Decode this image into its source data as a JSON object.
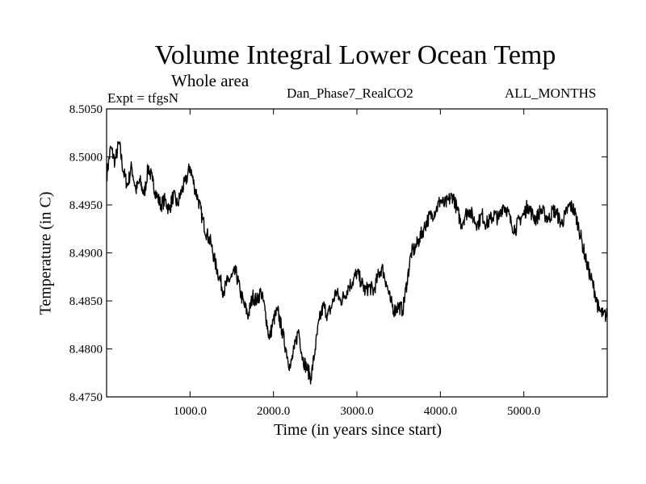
{
  "chart_data": {
    "type": "line",
    "title": "Volume Integral Lower Ocean Temp",
    "subtitle": "Whole area",
    "expt_label": "Expt = tfgsN",
    "run_label": "Dan_Phase7_RealCO2",
    "months_label": "ALL_MONTHS",
    "xlabel": "Time (in years since start)",
    "ylabel": "Temperature (in C)",
    "xlim": [
      0,
      6000
    ],
    "ylim": [
      8.475,
      8.505
    ],
    "xticks": [
      {
        "value": 1000,
        "label": "1000.0"
      },
      {
        "value": 2000,
        "label": "2000.0"
      },
      {
        "value": 3000,
        "label": "3000.0"
      },
      {
        "value": 4000,
        "label": "4000.0"
      },
      {
        "value": 5000,
        "label": "5000.0"
      }
    ],
    "yticks": [
      {
        "value": 8.475,
        "label": "8.4750"
      },
      {
        "value": 8.48,
        "label": "8.4800"
      },
      {
        "value": 8.485,
        "label": "8.4850"
      },
      {
        "value": 8.49,
        "label": "8.4900"
      },
      {
        "value": 8.495,
        "label": "8.4950"
      },
      {
        "value": 8.5,
        "label": "8.5000"
      },
      {
        "value": 8.505,
        "label": "8.5050"
      }
    ],
    "grid": false,
    "series": [
      {
        "name": "Volume Integral Lower Ocean Temp",
        "x": [
          0,
          50,
          100,
          150,
          200,
          250,
          300,
          350,
          400,
          450,
          500,
          550,
          600,
          650,
          700,
          750,
          800,
          850,
          900,
          950,
          1000,
          1050,
          1100,
          1150,
          1200,
          1250,
          1300,
          1350,
          1400,
          1450,
          1500,
          1550,
          1600,
          1650,
          1700,
          1750,
          1800,
          1850,
          1900,
          1950,
          2000,
          2050,
          2100,
          2150,
          2200,
          2250,
          2300,
          2350,
          2400,
          2450,
          2500,
          2550,
          2600,
          2650,
          2700,
          2750,
          2800,
          2850,
          2900,
          2950,
          3000,
          3050,
          3100,
          3150,
          3200,
          3250,
          3300,
          3350,
          3400,
          3450,
          3500,
          3550,
          3600,
          3650,
          3700,
          3750,
          3800,
          3850,
          3900,
          3950,
          4000,
          4050,
          4100,
          4150,
          4200,
          4250,
          4300,
          4350,
          4400,
          4450,
          4500,
          4550,
          4600,
          4650,
          4700,
          4750,
          4800,
          4850,
          4900,
          4950,
          5000,
          5050,
          5100,
          5150,
          5200,
          5250,
          5300,
          5350,
          5400,
          5450,
          5500,
          5550,
          5600,
          5650,
          5700,
          5750,
          5800,
          5850,
          5900,
          5950,
          6000
        ],
        "values": [
          8.498,
          8.501,
          8.4995,
          8.5015,
          8.4985,
          8.497,
          8.499,
          8.4965,
          8.4975,
          8.496,
          8.499,
          8.4975,
          8.496,
          8.495,
          8.4955,
          8.4945,
          8.496,
          8.495,
          8.4965,
          8.4975,
          8.499,
          8.497,
          8.4955,
          8.4935,
          8.492,
          8.491,
          8.489,
          8.4875,
          8.486,
          8.487,
          8.4875,
          8.488,
          8.486,
          8.4845,
          8.4835,
          8.4855,
          8.485,
          8.486,
          8.484,
          8.481,
          8.483,
          8.484,
          8.482,
          8.48,
          8.478,
          8.48,
          8.482,
          8.479,
          8.478,
          8.477,
          8.48,
          8.483,
          8.4845,
          8.4835,
          8.4845,
          8.486,
          8.485,
          8.4855,
          8.4865,
          8.487,
          8.488,
          8.487,
          8.486,
          8.4865,
          8.486,
          8.4875,
          8.4885,
          8.487,
          8.485,
          8.484,
          8.4845,
          8.484,
          8.487,
          8.49,
          8.4905,
          8.4915,
          8.4925,
          8.4935,
          8.494,
          8.4945,
          8.4955,
          8.495,
          8.4955,
          8.496,
          8.4945,
          8.493,
          8.494,
          8.4945,
          8.4935,
          8.493,
          8.494,
          8.493,
          8.4935,
          8.494,
          8.4935,
          8.495,
          8.4945,
          8.493,
          8.4925,
          8.4935,
          8.494,
          8.495,
          8.494,
          8.4935,
          8.4945,
          8.494,
          8.4935,
          8.4945,
          8.494,
          8.493,
          8.494,
          8.495,
          8.4945,
          8.493,
          8.491,
          8.489,
          8.4875,
          8.486,
          8.484,
          8.4835,
          8.4835
        ]
      }
    ]
  }
}
